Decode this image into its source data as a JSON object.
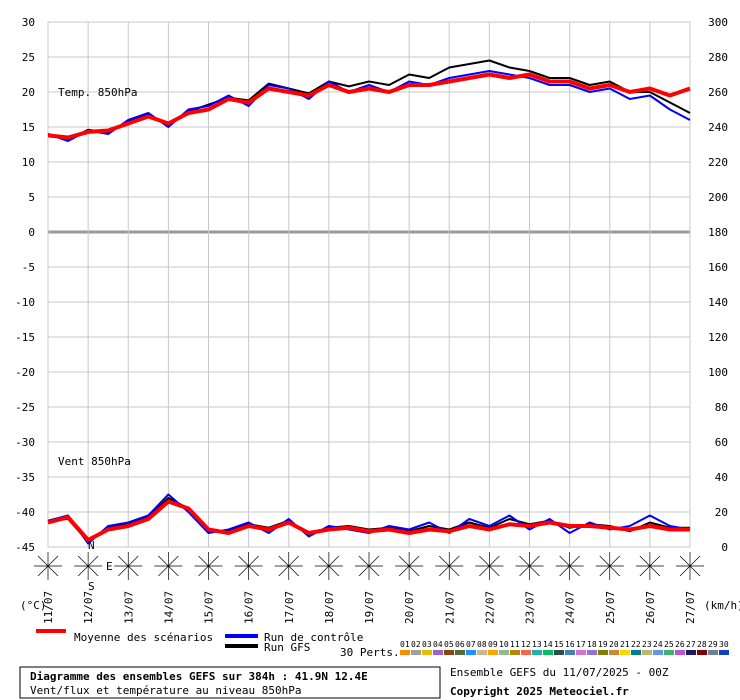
{
  "chart_data": {
    "type": "line",
    "annotations": [
      "Temp. 850hPa",
      "Vent 850hPa"
    ],
    "y_unit": "(°C)",
    "y2_unit": "(km/h)",
    "xlim": [
      0,
      384
    ],
    "xticks": [
      {
        "value": 0,
        "label": "11/07"
      },
      {
        "value": 24,
        "label": "12/07"
      },
      {
        "value": 48,
        "label": "13/07"
      },
      {
        "value": 72,
        "label": "14/07"
      },
      {
        "value": 96,
        "label": "15/07"
      },
      {
        "value": 120,
        "label": "16/07"
      },
      {
        "value": 144,
        "label": "17/07"
      },
      {
        "value": 168,
        "label": "18/07"
      },
      {
        "value": 192,
        "label": "19/07"
      },
      {
        "value": 216,
        "label": "20/07"
      },
      {
        "value": 240,
        "label": "21/07"
      },
      {
        "value": 264,
        "label": "22/07"
      },
      {
        "value": 288,
        "label": "23/07"
      },
      {
        "value": 312,
        "label": "24/07"
      },
      {
        "value": 336,
        "label": "25/07"
      },
      {
        "value": 360,
        "label": "26/07"
      },
      {
        "value": 384,
        "label": "27/07"
      }
    ],
    "ylim": [
      -45,
      30
    ],
    "yticks": [
      30,
      25,
      20,
      15,
      10,
      5,
      0,
      -5,
      -10,
      -15,
      -20,
      -25,
      -30,
      -35,
      -40,
      -45
    ],
    "y2lim": [
      0,
      300
    ],
    "y2ticks": [
      300,
      280,
      260,
      240,
      220,
      200,
      180,
      160,
      140,
      120,
      100,
      80,
      60,
      40,
      20,
      0
    ],
    "grid": true,
    "x": [
      0,
      12,
      24,
      36,
      48,
      60,
      72,
      84,
      96,
      108,
      120,
      132,
      144,
      156,
      168,
      180,
      192,
      204,
      216,
      228,
      240,
      252,
      264,
      276,
      288,
      300,
      312,
      324,
      336,
      348,
      360,
      372,
      384
    ],
    "series": [
      {
        "name": "Moyenne des scénarios",
        "color": "#ff0000",
        "axis": "y",
        "values": [
          13.8,
          13.5,
          14.3,
          14.5,
          15.5,
          16.5,
          15.5,
          17,
          17.5,
          19,
          18.5,
          20.5,
          20,
          19.5,
          21,
          20,
          20.5,
          20,
          21,
          21,
          21.5,
          22,
          22.5,
          22,
          22.5,
          21.5,
          21.5,
          20.5,
          21,
          20,
          20.5,
          19.5,
          20.5
        ]
      },
      {
        "name": "Run de contrôle",
        "color": "#0000ff",
        "axis": "y",
        "values": [
          14,
          13,
          14.5,
          14,
          16,
          17,
          15,
          17.5,
          18,
          19.5,
          18,
          21,
          20.5,
          19,
          21.5,
          20,
          21,
          20,
          21.5,
          21,
          22,
          22.5,
          23,
          22.5,
          22,
          21,
          21,
          20,
          20.5,
          19,
          19.5,
          17.5,
          16
        ]
      },
      {
        "name": "Run GFS",
        "color": "#000000",
        "axis": "y",
        "values": [
          14,
          13.2,
          14.6,
          14.2,
          15.8,
          16.8,
          15.2,
          17.2,
          18.2,
          19.2,
          18.8,
          21.2,
          20.5,
          19.8,
          21.5,
          20.8,
          21.5,
          21,
          22.5,
          22,
          23.5,
          24,
          24.5,
          23.5,
          23,
          22,
          22,
          21,
          21.5,
          20,
          20,
          18.5,
          17
        ]
      },
      {
        "name": "Moyenne des scénarios",
        "color": "#ff0000",
        "axis": "y2",
        "values": [
          14,
          17,
          4,
          10,
          12,
          16,
          26,
          22,
          10,
          8,
          12,
          10,
          14,
          8,
          10,
          11,
          9,
          10,
          8,
          10,
          9,
          12,
          10,
          13,
          12,
          14,
          12,
          12,
          11,
          10,
          12,
          10,
          10
        ]
      },
      {
        "name": "Run de contrôle",
        "color": "#0000ff",
        "axis": "y2",
        "values": [
          15,
          18,
          2,
          12,
          14,
          18,
          30,
          20,
          8,
          10,
          14,
          8,
          16,
          6,
          12,
          10,
          8,
          12,
          10,
          14,
          8,
          16,
          12,
          18,
          10,
          16,
          8,
          14,
          10,
          12,
          18,
          12,
          10
        ]
      },
      {
        "name": "Run GFS",
        "color": "#000000",
        "axis": "y2",
        "values": [
          15,
          16,
          3,
          11,
          13,
          17,
          28,
          22,
          9,
          9,
          13,
          11,
          15,
          7,
          11,
          12,
          10,
          11,
          9,
          12,
          10,
          14,
          11,
          16,
          13,
          15,
          11,
          13,
          12,
          9,
          14,
          11,
          11
        ]
      }
    ],
    "perturbations_label": "30 Perts.",
    "perturbations": [
      {
        "label": "01",
        "color": "#ff8c00"
      },
      {
        "label": "02",
        "color": "#a0a0a0"
      },
      {
        "label": "03",
        "color": "#e0c000"
      },
      {
        "label": "04",
        "color": "#9966cc"
      },
      {
        "label": "05",
        "color": "#8b4513"
      },
      {
        "label": "06",
        "color": "#556b2f"
      },
      {
        "label": "07",
        "color": "#1e90ff"
      },
      {
        "label": "08",
        "color": "#d2b48c"
      },
      {
        "label": "09",
        "color": "#ffa500"
      },
      {
        "label": "10",
        "color": "#8fbc8f"
      },
      {
        "label": "11",
        "color": "#b8860b"
      },
      {
        "label": "12",
        "color": "#ff6347"
      },
      {
        "label": "13",
        "color": "#20b2aa"
      },
      {
        "label": "14",
        "color": "#00c060"
      },
      {
        "label": "15",
        "color": "#2f4f4f"
      },
      {
        "label": "16",
        "color": "#4682b4"
      },
      {
        "label": "17",
        "color": "#da70d6"
      },
      {
        "label": "18",
        "color": "#9370db"
      },
      {
        "label": "19",
        "color": "#808000"
      },
      {
        "label": "20",
        "color": "#cd853f"
      },
      {
        "label": "21",
        "color": "#ffd700"
      },
      {
        "label": "22",
        "color": "#008080"
      },
      {
        "label": "23",
        "color": "#bdb76b"
      },
      {
        "label": "24",
        "color": "#6495ed"
      },
      {
        "label": "25",
        "color": "#3cb371"
      },
      {
        "label": "26",
        "color": "#ba55d3"
      },
      {
        "label": "27",
        "color": "#191970"
      },
      {
        "label": "28",
        "color": "#800000"
      },
      {
        "label": "29",
        "color": "#708090"
      },
      {
        "label": "30",
        "color": "#1040c0"
      }
    ],
    "compass": [
      "N",
      "E",
      "S"
    ],
    "footer": {
      "title": "Diagramme des ensembles GEFS sur 384h : 41.9N 12.4E",
      "subtitle": "Vent/flux et température au niveau 850hPa",
      "run": "Ensemble GEFS du 11/07/2025 - 00Z",
      "copyright": "Copyright 2025 Meteociel.fr"
    }
  }
}
